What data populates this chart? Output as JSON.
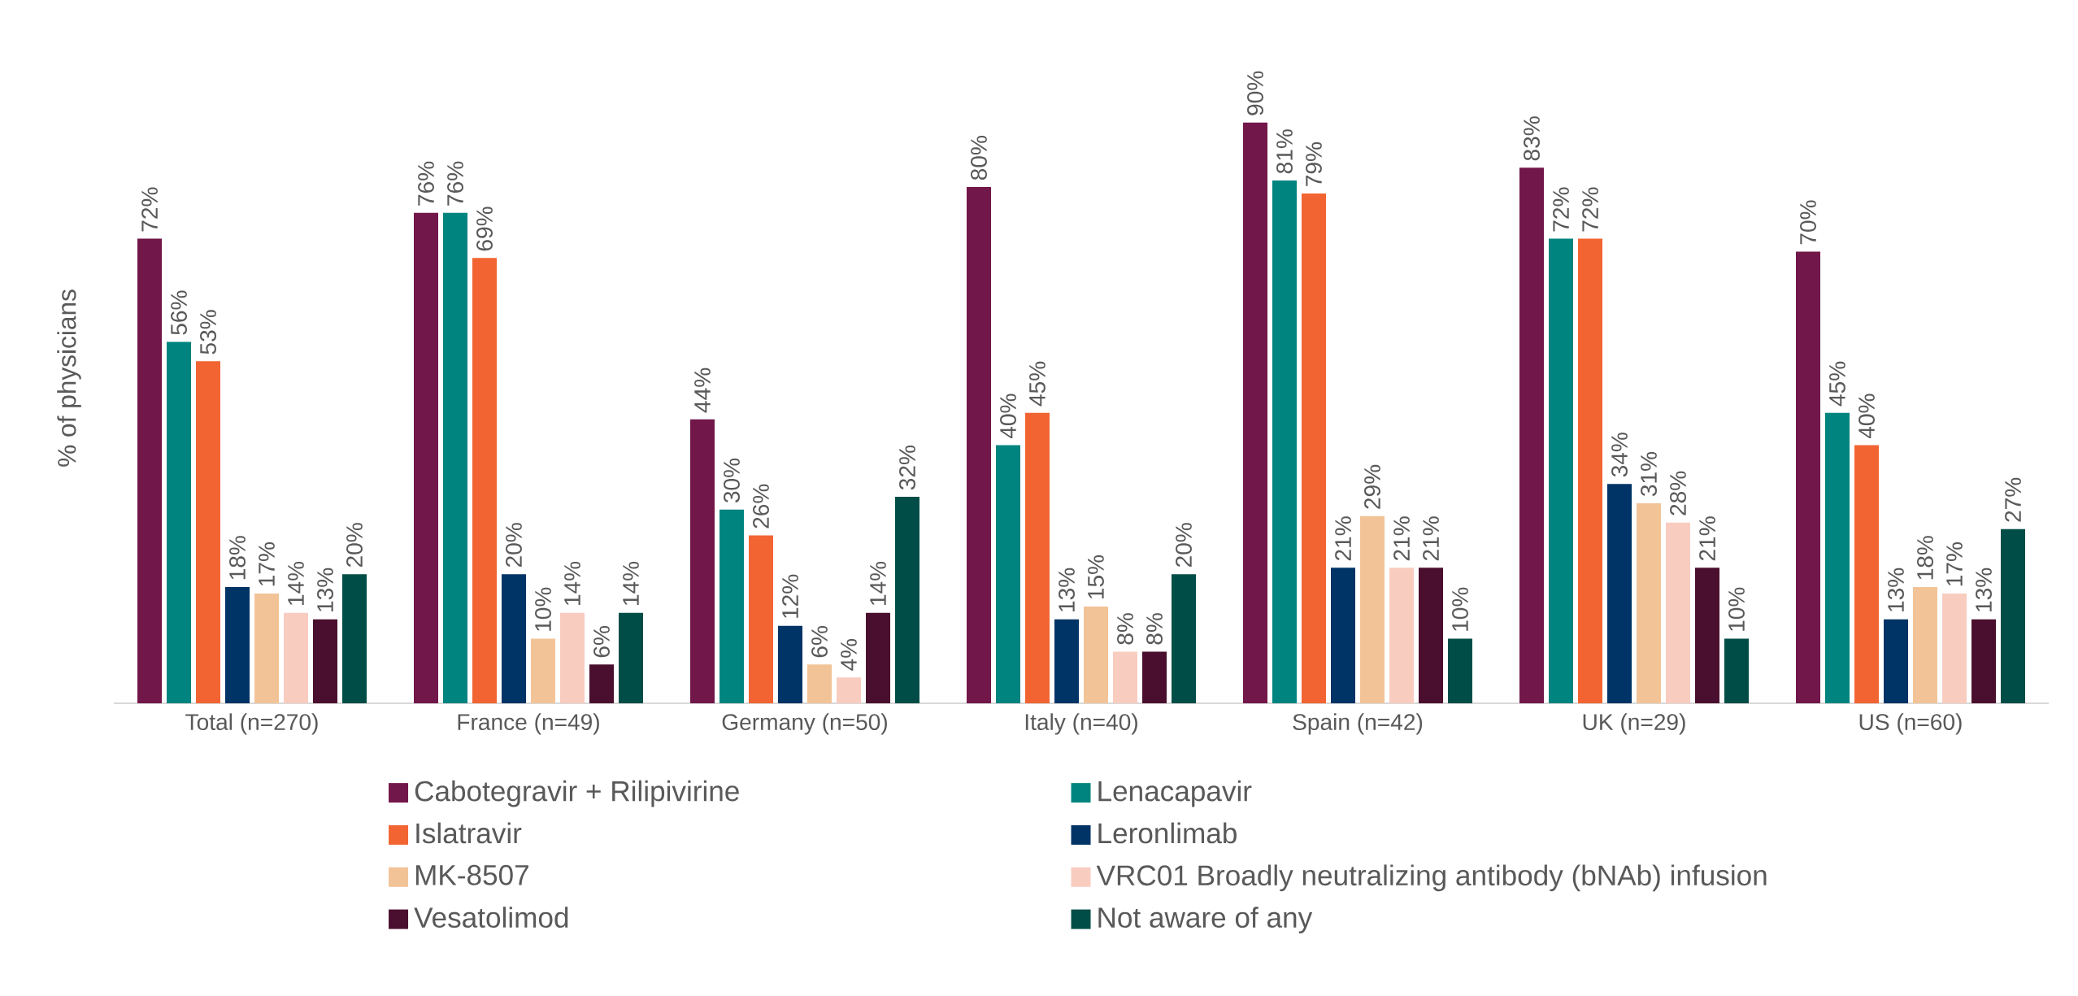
{
  "chart_data": {
    "type": "bar",
    "ylabel": "% of physicians",
    "categories": [
      "Total (n=270)",
      "France (n=49)",
      "Germany (n=50)",
      "Italy (n=40)",
      "Spain (n=42)",
      "UK (n=29)",
      "US (n=60)"
    ],
    "series": [
      {
        "name": "Cabotegravir + Rilipivirine",
        "color": "#72174a",
        "values": [
          72,
          76,
          44,
          80,
          90,
          83,
          70
        ],
        "value_labels": [
          "72%",
          "76%",
          "44%",
          "80%",
          "90%",
          "83%",
          "70%"
        ]
      },
      {
        "name": "Lenacapavir",
        "color": "#00847f",
        "values": [
          56,
          76,
          30,
          40,
          81,
          72,
          45
        ],
        "value_labels": [
          "56%",
          "76%",
          "30%",
          "40%",
          "81%",
          "72%",
          "45%"
        ]
      },
      {
        "name": "Islatravir",
        "color": "#f26532",
        "values": [
          53,
          69,
          26,
          45,
          79,
          72,
          40
        ],
        "value_labels": [
          "53%",
          "69%",
          "26%",
          "45%",
          "79%",
          "72%",
          "40%"
        ]
      },
      {
        "name": "Leronlimab",
        "color": "#003366",
        "values": [
          18,
          20,
          12,
          13,
          21,
          34,
          13
        ],
        "value_labels": [
          "18%",
          "20%",
          "12%",
          "13%",
          "21%",
          "34%",
          "13%"
        ]
      },
      {
        "name": "MK-8507",
        "color": "#f2c397",
        "values": [
          17,
          10,
          6,
          15,
          29,
          31,
          18
        ],
        "value_labels": [
          "17%",
          "10%",
          "6%",
          "15%",
          "29%",
          "31%",
          "18%"
        ]
      },
      {
        "name": "VRC01 Broadly neutralizing antibody (bNAb) infusion",
        "color": "#f9ccc0",
        "values": [
          14,
          14,
          4,
          8,
          21,
          28,
          17
        ],
        "value_labels": [
          "14%",
          "14%",
          "4%",
          "8%",
          "21%",
          "28%",
          "17%"
        ]
      },
      {
        "name": "Vesatolimod",
        "color": "#4a0f2e",
        "values": [
          13,
          6,
          14,
          8,
          21,
          21,
          13
        ],
        "value_labels": [
          "13%",
          "6%",
          "14%",
          "8%",
          "21%",
          "21%",
          "13%"
        ]
      },
      {
        "name": "Not aware of any",
        "color": "#004d47",
        "values": [
          20,
          14,
          32,
          20,
          10,
          10,
          27
        ],
        "value_labels": [
          "20%",
          "14%",
          "32%",
          "20%",
          "10%",
          "10%",
          "27%"
        ]
      }
    ],
    "legend": "bottom"
  }
}
